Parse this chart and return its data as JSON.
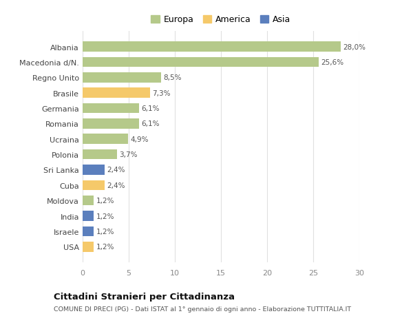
{
  "categories": [
    "Albania",
    "Macedonia d/N.",
    "Regno Unito",
    "Brasile",
    "Germania",
    "Romania",
    "Ucraina",
    "Polonia",
    "Sri Lanka",
    "Cuba",
    "Moldova",
    "India",
    "Israele",
    "USA"
  ],
  "values": [
    28.0,
    25.6,
    8.5,
    7.3,
    6.1,
    6.1,
    4.9,
    3.7,
    2.4,
    2.4,
    1.2,
    1.2,
    1.2,
    1.2
  ],
  "labels": [
    "28,0%",
    "25,6%",
    "8,5%",
    "7,3%",
    "6,1%",
    "6,1%",
    "4,9%",
    "3,7%",
    "2,4%",
    "2,4%",
    "1,2%",
    "1,2%",
    "1,2%",
    "1,2%"
  ],
  "continents": [
    "Europa",
    "Europa",
    "Europa",
    "America",
    "Europa",
    "Europa",
    "Europa",
    "Europa",
    "Asia",
    "America",
    "Europa",
    "Asia",
    "Asia",
    "America"
  ],
  "colors": {
    "Europa": "#b5c98a",
    "America": "#f5c96a",
    "Asia": "#5b7fbd"
  },
  "xlim": [
    0,
    30
  ],
  "xticks": [
    0,
    5,
    10,
    15,
    20,
    25,
    30
  ],
  "title": "Cittadini Stranieri per Cittadinanza",
  "subtitle": "COMUNE DI PRECI (PG) - Dati ISTAT al 1° gennaio di ogni anno - Elaborazione TUTTITALIA.IT",
  "background_color": "#ffffff",
  "grid_color": "#e0e0e0"
}
